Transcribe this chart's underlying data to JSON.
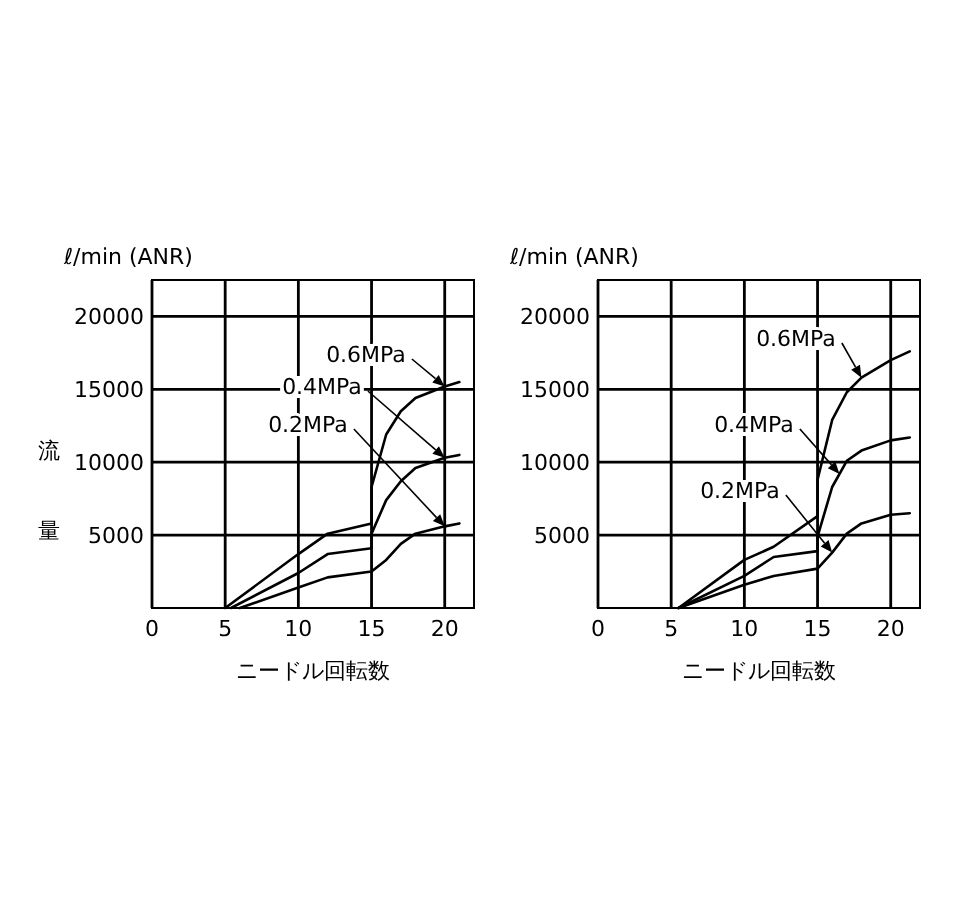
{
  "chart_data": [
    {
      "type": "line",
      "xlabel": "ニードル回転数",
      "ylabel": "ℓ/min (ANR)",
      "annotations": [
        "流量"
      ],
      "xlim": [
        0,
        22
      ],
      "ylim": [
        0,
        22500
      ],
      "xticks": [
        0,
        5,
        10,
        15,
        20
      ],
      "yticks": [
        5000,
        10000,
        15000,
        20000
      ],
      "grid": true,
      "series": [
        {
          "name": "0.6MPa",
          "color": "#000000",
          "x": [
            5,
            10,
            12,
            15,
            15,
            16,
            17,
            18,
            20,
            21
          ],
          "values": [
            0,
            3700,
            5100,
            5800,
            8300,
            11900,
            13500,
            14400,
            15200,
            15500
          ]
        },
        {
          "name": "0.4MPa",
          "color": "#000000",
          "x": [
            5.4,
            10,
            12,
            15,
            15,
            16,
            17,
            18,
            20,
            21
          ],
          "values": [
            0,
            2400,
            3700,
            4100,
            5100,
            7400,
            8700,
            9600,
            10300,
            10500
          ]
        },
        {
          "name": "0.2MPa",
          "color": "#000000",
          "x": [
            6,
            10,
            12,
            15,
            16,
            17,
            18,
            20,
            21
          ],
          "values": [
            0,
            1400,
            2100,
            2500,
            3300,
            4400,
            5100,
            5600,
            5800
          ]
        }
      ]
    },
    {
      "type": "line",
      "xlabel": "ニードル回転数",
      "ylabel": "ℓ/min (ANR)",
      "xlim": [
        0,
        22
      ],
      "ylim": [
        0,
        22500
      ],
      "xticks": [
        0,
        5,
        10,
        15,
        20
      ],
      "yticks": [
        5000,
        10000,
        15000,
        20000
      ],
      "grid": true,
      "series": [
        {
          "name": "0.6MPa",
          "color": "#000000",
          "x": [
            5.5,
            10,
            12,
            15,
            15,
            16,
            17,
            18,
            20,
            21.3
          ],
          "values": [
            0,
            3300,
            4200,
            6300,
            8800,
            12900,
            14800,
            15800,
            17000,
            17600
          ]
        },
        {
          "name": "0.4MPa",
          "color": "#000000",
          "x": [
            5.5,
            10,
            12,
            15,
            15,
            16,
            17,
            18,
            20,
            21.3
          ],
          "values": [
            0,
            2200,
            3500,
            3900,
            4900,
            8300,
            10100,
            10800,
            11500,
            11700
          ]
        },
        {
          "name": "0.2MPa",
          "color": "#000000",
          "x": [
            5.5,
            10,
            12,
            15,
            16,
            17,
            18,
            20,
            21.3
          ],
          "values": [
            0,
            1600,
            2200,
            2700,
            3800,
            5100,
            5800,
            6400,
            6500
          ]
        }
      ]
    }
  ]
}
